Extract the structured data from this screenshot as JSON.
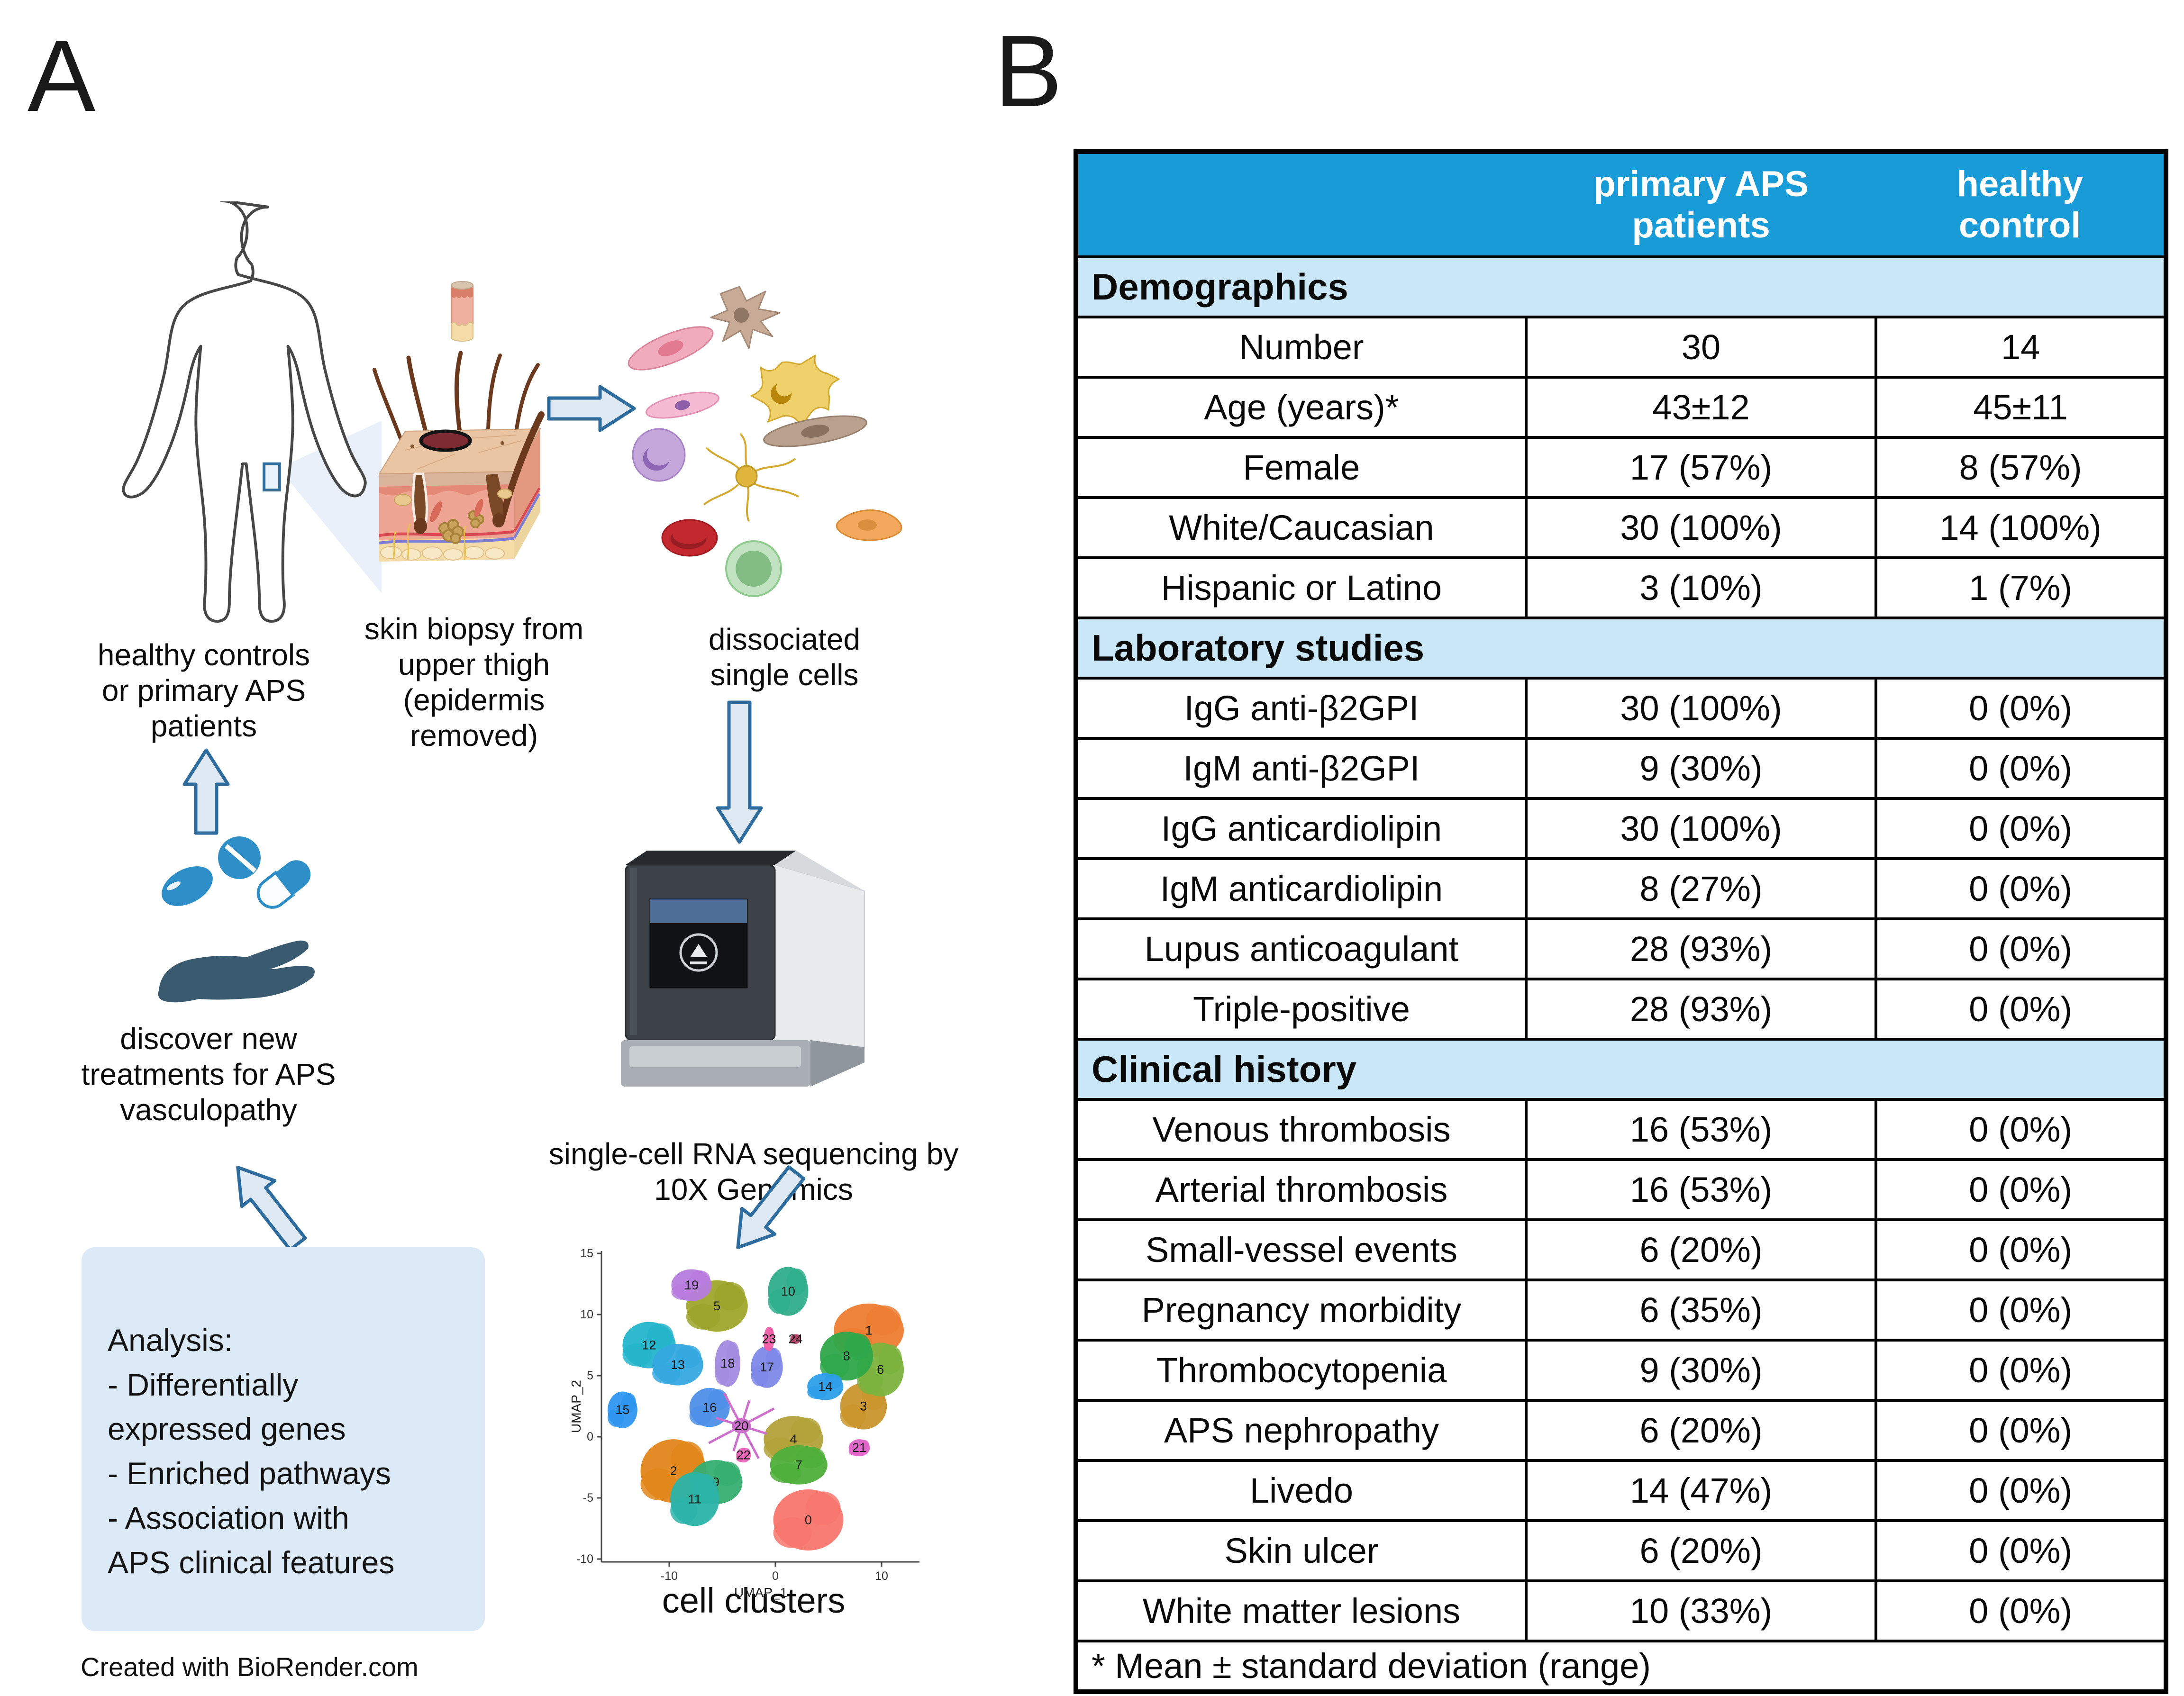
{
  "figure": {
    "panel_a_label": "A",
    "panel_b_label": "B",
    "credit": "Created with BioRender.com"
  },
  "panel_a": {
    "patient_label": "healthy controls\nor primary APS\npatients",
    "biopsy_label": "skin biopsy from\nupper thigh\n(epidermis\nremoved)",
    "cells_label": "dissociated\nsingle cells",
    "sequencing_label": "single-cell RNA sequencing by\n10X Genomics",
    "clusters_label": "cell clusters",
    "treatment_label": "discover new\ntreatments for APS\nvasculopathy",
    "analysis_label": "Analysis:\n- Differentially\nexpressed genes\n- Enriched pathways\n- Association with\nAPS clinical features"
  },
  "icons": {
    "human-body-icon": "outlined human figure with biopsy site on upper thigh",
    "punch-biopsy-tool-icon": "skin punch biopsy cylinder",
    "skin-block-icon": "3D skin tissue block with hairs and biopsy hole",
    "single-cells-icon": "assorted dissociated cells",
    "sequencer-icon": "10X Genomics benchtop instrument",
    "hand-pills-icon": "hand holding pills (new treatments)",
    "flow-arrow-icon": "light blue block arrow"
  },
  "colors": {
    "header_blue": "#189BD7",
    "section_blue": "#C9E7F6",
    "analysis_box": "#DCE9F6",
    "arrow_fill": "#DEE9F4",
    "arrow_stroke": "#2E6C9E",
    "hand_icon": "#3A5A70",
    "pill_blue": "#2E8FC8"
  },
  "table": {
    "columns": [
      "",
      "primary APS\npatients",
      "healthy\ncontrol"
    ],
    "sections": [
      {
        "title": "Demographics",
        "rows": [
          [
            "Number",
            "30",
            "14"
          ],
          [
            "Age (years)*",
            "43±12",
            "45±11"
          ],
          [
            "Female",
            "17 (57%)",
            "8 (57%)"
          ],
          [
            "White/Caucasian",
            "30 (100%)",
            "14 (100%)"
          ],
          [
            "Hispanic or Latino",
            "3 (10%)",
            "1 (7%)"
          ]
        ]
      },
      {
        "title": "Laboratory studies",
        "rows": [
          [
            "IgG anti-β2GPI",
            "30 (100%)",
            "0 (0%)"
          ],
          [
            "IgM anti-β2GPI",
            "9 (30%)",
            "0 (0%)"
          ],
          [
            "IgG anticardiolipin",
            "30 (100%)",
            "0 (0%)"
          ],
          [
            "IgM anticardiolipin",
            "8 (27%)",
            "0 (0%)"
          ],
          [
            "Lupus anticoagulant",
            "28 (93%)",
            "0 (0%)"
          ],
          [
            "Triple-positive",
            "28 (93%)",
            "0 (0%)"
          ]
        ]
      },
      {
        "title": "Clinical history",
        "rows": [
          [
            "Venous thrombosis",
            "16 (53%)",
            "0 (0%)"
          ],
          [
            "Arterial thrombosis",
            "16 (53%)",
            "0 (0%)"
          ],
          [
            "Small-vessel events",
            "6 (20%)",
            "0 (0%)"
          ],
          [
            "Pregnancy morbidity",
            "6 (35%)",
            "0 (0%)"
          ],
          [
            "Thrombocytopenia",
            "9 (30%)",
            "0 (0%)"
          ],
          [
            "APS nephropathy",
            "6 (20%)",
            "0 (0%)"
          ],
          [
            "Livedo",
            "14 (47%)",
            "0 (0%)"
          ],
          [
            "Skin ulcer",
            "6 (20%)",
            "0 (0%)"
          ],
          [
            "White matter lesions",
            "10 (33%)",
            "0 (0%)"
          ]
        ]
      }
    ],
    "footnote": "* Mean ± standard deviation (range)"
  },
  "chart_data": {
    "type": "scatter",
    "title": "cell clusters",
    "xlabel": "UMAP_1",
    "ylabel": "UMAP_2",
    "xlim": [
      -16,
      13
    ],
    "ylim": [
      -11,
      15.5
    ],
    "xticks": [
      -10,
      0,
      10
    ],
    "yticks": [
      -10,
      -5,
      0,
      5,
      10,
      15
    ],
    "grid": false,
    "legend": "none (clusters labeled in plot)",
    "clusters": [
      {
        "id": 0,
        "x": 3.1,
        "y": -6.8,
        "rx": 3.3,
        "ry": 2.5,
        "color": "#F8766D"
      },
      {
        "id": 1,
        "x": 8.8,
        "y": 8.7,
        "rx": 3.3,
        "ry": 2.2,
        "color": "#ED7D31"
      },
      {
        "id": 2,
        "x": -9.6,
        "y": -2.8,
        "rx": 3.1,
        "ry": 2.6,
        "color": "#E2861B"
      },
      {
        "id": 3,
        "x": 8.3,
        "y": 2.5,
        "rx": 2.2,
        "ry": 1.9,
        "color": "#C9952C"
      },
      {
        "id": 4,
        "x": 1.7,
        "y": -0.2,
        "rx": 2.8,
        "ry": 1.9,
        "color": "#B3A23A"
      },
      {
        "id": 5,
        "x": -5.5,
        "y": 10.7,
        "rx": 2.9,
        "ry": 2.1,
        "color": "#9EA52B"
      },
      {
        "id": 6,
        "x": 9.9,
        "y": 5.5,
        "rx": 2.2,
        "ry": 2.2,
        "color": "#7BB33E"
      },
      {
        "id": 7,
        "x": 2.2,
        "y": -2.3,
        "rx": 2.7,
        "ry": 1.6,
        "color": "#4FAF3B"
      },
      {
        "id": 8,
        "x": 6.7,
        "y": 6.6,
        "rx": 2.5,
        "ry": 2.0,
        "color": "#2EA84A"
      },
      {
        "id": 9,
        "x": -5.6,
        "y": -3.7,
        "rx": 2.5,
        "ry": 1.8,
        "color": "#35AE70"
      },
      {
        "id": 10,
        "x": 1.2,
        "y": 11.9,
        "rx": 1.9,
        "ry": 2.0,
        "color": "#2FAE8C"
      },
      {
        "id": 11,
        "x": -7.6,
        "y": -5.1,
        "rx": 2.3,
        "ry": 2.2,
        "color": "#2BB3A8"
      },
      {
        "id": 12,
        "x": -11.9,
        "y": 7.5,
        "rx": 2.5,
        "ry": 1.9,
        "color": "#24B5CB"
      },
      {
        "id": 13,
        "x": -9.2,
        "y": 5.9,
        "rx": 2.4,
        "ry": 1.7,
        "color": "#35A8E0"
      },
      {
        "id": 14,
        "x": 4.7,
        "y": 4.1,
        "rx": 1.7,
        "ry": 1.1,
        "color": "#2D9FE8"
      },
      {
        "id": 15,
        "x": -14.4,
        "y": 2.2,
        "rx": 1.4,
        "ry": 1.5,
        "color": "#2E96F0"
      },
      {
        "id": 16,
        "x": -6.2,
        "y": 2.4,
        "rx": 1.9,
        "ry": 1.6,
        "color": "#4E8FE8"
      },
      {
        "id": 17,
        "x": -0.8,
        "y": 5.7,
        "rx": 1.5,
        "ry": 1.7,
        "color": "#7E88E8"
      },
      {
        "id": 18,
        "x": -4.5,
        "y": 6.0,
        "rx": 1.2,
        "ry": 1.9,
        "color": "#A38BE0"
      },
      {
        "id": 19,
        "x": -7.9,
        "y": 12.4,
        "rx": 1.9,
        "ry": 1.3,
        "color": "#B77CDE"
      },
      {
        "id": 20,
        "x": -3.2,
        "y": 0.9,
        "rx": 1.1,
        "ry": 0.9,
        "color": "#CC70CC",
        "star": true
      },
      {
        "id": 21,
        "x": 7.9,
        "y": -0.9,
        "rx": 1.0,
        "ry": 0.7,
        "color": "#E263C8"
      },
      {
        "id": 22,
        "x": -3.0,
        "y": -1.5,
        "rx": 0.7,
        "ry": 0.6,
        "color": "#EA66B8"
      },
      {
        "id": 23,
        "x": -0.6,
        "y": 8.0,
        "rx": 0.5,
        "ry": 1.0,
        "color": "#EE5FA8"
      },
      {
        "id": 24,
        "x": 1.9,
        "y": 8.0,
        "rx": 0.5,
        "ry": 0.4,
        "color": "#B04468"
      }
    ]
  }
}
